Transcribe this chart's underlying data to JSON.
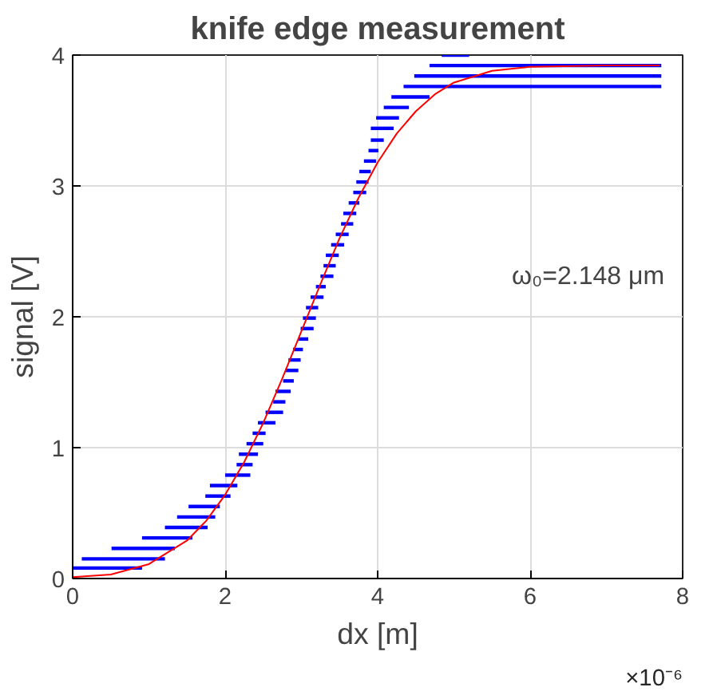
{
  "chart_data": {
    "type": "line",
    "title": "knife edge measurement",
    "xlabel": "dx [m]",
    "ylabel": "signal [V]",
    "xlim": [
      0,
      8
    ],
    "ylim": [
      0,
      4
    ],
    "xticks": [
      0,
      2,
      4,
      6,
      8
    ],
    "yticks": [
      0,
      1,
      2,
      3,
      4
    ],
    "grid": true,
    "annotations": [
      "ω₀=2.148 μm",
      "×10⁻⁶"
    ],
    "series": [
      {
        "color": "#0000ff",
        "x": [
          0,
          0.91
        ],
        "values": [
          0.08,
          0.08
        ]
      },
      {
        "color": "#0000ff",
        "x": [
          0.12,
          1.21
        ],
        "values": [
          0.15,
          0.15
        ]
      },
      {
        "color": "#0000ff",
        "x": [
          0.51,
          1.34
        ],
        "values": [
          0.23,
          0.23
        ]
      },
      {
        "color": "#0000ff",
        "x": [
          0.91,
          1.57
        ],
        "values": [
          0.31,
          0.31
        ]
      },
      {
        "color": "#0000ff",
        "x": [
          1.21,
          1.77
        ],
        "values": [
          0.39,
          0.39
        ]
      },
      {
        "color": "#0000ff",
        "x": [
          1.37,
          1.87
        ],
        "values": [
          0.47,
          0.47
        ]
      },
      {
        "color": "#0000ff",
        "x": [
          1.52,
          1.93
        ],
        "values": [
          0.55,
          0.55
        ]
      },
      {
        "color": "#0000ff",
        "x": [
          1.74,
          2.07
        ],
        "values": [
          0.63,
          0.63
        ]
      },
      {
        "color": "#0000ff",
        "x": [
          1.8,
          2.16
        ],
        "values": [
          0.71,
          0.71
        ]
      },
      {
        "color": "#0000ff",
        "x": [
          2.0,
          2.33
        ],
        "values": [
          0.79,
          0.79
        ]
      },
      {
        "color": "#0000ff",
        "x": [
          2.15,
          2.36
        ],
        "values": [
          0.87,
          0.87
        ]
      },
      {
        "color": "#0000ff",
        "x": [
          2.18,
          2.43
        ],
        "values": [
          0.95,
          0.95
        ]
      },
      {
        "color": "#0000ff",
        "x": [
          2.28,
          2.5
        ],
        "values": [
          1.03,
          1.03
        ]
      },
      {
        "color": "#0000ff",
        "x": [
          2.36,
          2.53
        ],
        "values": [
          1.11,
          1.11
        ]
      },
      {
        "color": "#0000ff",
        "x": [
          2.43,
          2.66
        ],
        "values": [
          1.19,
          1.19
        ]
      },
      {
        "color": "#0000ff",
        "x": [
          2.53,
          2.76
        ],
        "values": [
          1.27,
          1.27
        ]
      },
      {
        "color": "#0000ff",
        "x": [
          2.63,
          2.79
        ],
        "values": [
          1.35,
          1.35
        ]
      },
      {
        "color": "#0000ff",
        "x": [
          2.66,
          2.86
        ],
        "values": [
          1.43,
          1.43
        ]
      },
      {
        "color": "#0000ff",
        "x": [
          2.76,
          2.9
        ],
        "values": [
          1.51,
          1.51
        ]
      },
      {
        "color": "#0000ff",
        "x": [
          2.79,
          2.96
        ],
        "values": [
          1.59,
          1.59
        ]
      },
      {
        "color": "#0000ff",
        "x": [
          2.83,
          2.99
        ],
        "values": [
          1.67,
          1.67
        ]
      },
      {
        "color": "#0000ff",
        "x": [
          2.89,
          3.02
        ],
        "values": [
          1.75,
          1.75
        ]
      },
      {
        "color": "#0000ff",
        "x": [
          2.96,
          3.09
        ],
        "values": [
          1.83,
          1.83
        ]
      },
      {
        "color": "#0000ff",
        "x": [
          2.99,
          3.16
        ],
        "values": [
          1.91,
          1.91
        ]
      },
      {
        "color": "#0000ff",
        "x": [
          3.02,
          3.19
        ],
        "values": [
          1.99,
          1.99
        ]
      },
      {
        "color": "#0000ff",
        "x": [
          3.06,
          3.22
        ],
        "values": [
          2.07,
          2.07
        ]
      },
      {
        "color": "#0000ff",
        "x": [
          3.12,
          3.29
        ],
        "values": [
          2.15,
          2.15
        ]
      },
      {
        "color": "#0000ff",
        "x": [
          3.19,
          3.32
        ],
        "values": [
          2.23,
          2.23
        ]
      },
      {
        "color": "#0000ff",
        "x": [
          3.25,
          3.42
        ],
        "values": [
          2.31,
          2.31
        ]
      },
      {
        "color": "#0000ff",
        "x": [
          3.29,
          3.45
        ],
        "values": [
          2.39,
          2.39
        ]
      },
      {
        "color": "#0000ff",
        "x": [
          3.32,
          3.49
        ],
        "values": [
          2.47,
          2.47
        ]
      },
      {
        "color": "#0000ff",
        "x": [
          3.39,
          3.56
        ],
        "values": [
          2.55,
          2.55
        ]
      },
      {
        "color": "#0000ff",
        "x": [
          3.45,
          3.62
        ],
        "values": [
          2.63,
          2.63
        ]
      },
      {
        "color": "#0000ff",
        "x": [
          3.52,
          3.68
        ],
        "values": [
          2.71,
          2.71
        ]
      },
      {
        "color": "#0000ff",
        "x": [
          3.55,
          3.72
        ],
        "values": [
          2.79,
          2.79
        ]
      },
      {
        "color": "#0000ff",
        "x": [
          3.62,
          3.76
        ],
        "values": [
          2.87,
          2.87
        ]
      },
      {
        "color": "#0000ff",
        "x": [
          3.68,
          3.85
        ],
        "values": [
          2.95,
          2.95
        ]
      },
      {
        "color": "#0000ff",
        "x": [
          3.72,
          3.88
        ],
        "values": [
          3.03,
          3.03
        ]
      },
      {
        "color": "#0000ff",
        "x": [
          3.76,
          3.91
        ],
        "values": [
          3.11,
          3.11
        ]
      },
      {
        "color": "#0000ff",
        "x": [
          3.82,
          3.98
        ],
        "values": [
          3.19,
          3.19
        ]
      },
      {
        "color": "#0000ff",
        "x": [
          3.88,
          4.01
        ],
        "values": [
          3.27,
          3.27
        ]
      },
      {
        "color": "#0000ff",
        "x": [
          3.91,
          4.08
        ],
        "values": [
          3.35,
          3.35
        ]
      },
      {
        "color": "#0000ff",
        "x": [
          3.91,
          4.21
        ],
        "values": [
          3.44,
          3.44
        ]
      },
      {
        "color": "#0000ff",
        "x": [
          3.98,
          4.28
        ],
        "values": [
          3.52,
          3.52
        ]
      },
      {
        "color": "#0000ff",
        "x": [
          4.08,
          4.41
        ],
        "values": [
          3.6,
          3.6
        ]
      },
      {
        "color": "#0000ff",
        "x": [
          4.18,
          4.68
        ],
        "values": [
          3.68,
          3.68
        ]
      },
      {
        "color": "#0000ff",
        "x": [
          4.34,
          7.72
        ],
        "values": [
          3.76,
          3.76
        ]
      },
      {
        "color": "#0000ff",
        "x": [
          4.48,
          7.72
        ],
        "values": [
          3.84,
          3.84
        ]
      },
      {
        "color": "#0000ff",
        "x": [
          4.68,
          7.72
        ],
        "values": [
          3.92,
          3.92
        ]
      },
      {
        "color": "#0000ff",
        "x": [
          4.84,
          5.2
        ],
        "values": [
          4.0,
          4.0
        ]
      },
      {
        "color": "#ff0000",
        "x": [
          0,
          0.5,
          1,
          1.5,
          1.75,
          2,
          2.25,
          2.5,
          2.75,
          3,
          3.25,
          3.5,
          3.75,
          4,
          4.25,
          4.5,
          4.75,
          5,
          5.5,
          6,
          7,
          7.7
        ],
        "values": [
          0.01,
          0.03,
          0.11,
          0.29,
          0.44,
          0.64,
          0.89,
          1.19,
          1.53,
          1.89,
          2.25,
          2.6,
          2.91,
          3.18,
          3.4,
          3.57,
          3.7,
          3.79,
          3.88,
          3.91,
          3.92,
          3.92
        ]
      }
    ]
  }
}
